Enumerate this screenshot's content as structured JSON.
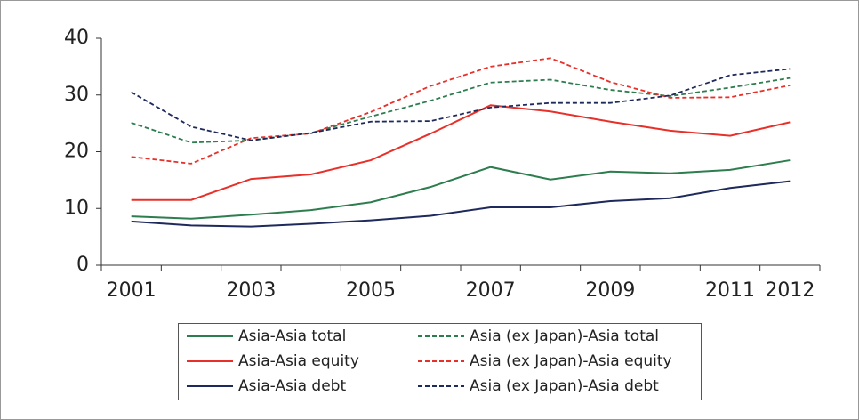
{
  "chart_data": {
    "type": "line",
    "categories": [
      2001,
      null,
      2003,
      null,
      2005,
      null,
      2007,
      null,
      2009,
      null,
      2011,
      2012
    ],
    "series": [
      {
        "name": "Asia-Asia total",
        "color": "#2e7d4f",
        "dashed": false,
        "values": [
          8.6,
          8.2,
          8.9,
          9.7,
          11.1,
          13.8,
          17.3,
          15.1,
          16.5,
          16.2,
          16.8,
          18.5
        ]
      },
      {
        "name": "Asia (ex Japan)-Asia total",
        "color": "#2e7d4f",
        "dashed": true,
        "values": [
          25.1,
          21.6,
          22.0,
          23.3,
          26.2,
          29.0,
          32.2,
          32.7,
          30.9,
          29.8,
          31.3,
          33.0
        ]
      },
      {
        "name": "Asia-Asia equity",
        "color": "#e8302a",
        "dashed": false,
        "values": [
          11.5,
          11.5,
          15.2,
          16.0,
          18.5,
          23.2,
          28.2,
          27.1,
          25.3,
          23.7,
          22.8,
          25.2
        ]
      },
      {
        "name": "Asia (ex Japan)-Asia equity",
        "color": "#e8302a",
        "dashed": true,
        "values": [
          19.1,
          17.9,
          22.4,
          23.2,
          27.0,
          31.6,
          35.0,
          36.5,
          32.3,
          29.5,
          29.6,
          31.7
        ]
      },
      {
        "name": "Asia-Asia debt",
        "color": "#1f2a5c",
        "dashed": false,
        "values": [
          7.7,
          7.0,
          6.8,
          7.3,
          7.9,
          8.7,
          10.2,
          10.2,
          11.3,
          11.8,
          13.6,
          14.8
        ]
      },
      {
        "name": "Asia (ex Japan)-Asia debt",
        "color": "#1f2a5c",
        "dashed": true,
        "values": [
          30.5,
          24.4,
          22.0,
          23.3,
          25.3,
          25.4,
          27.8,
          28.6,
          28.6,
          29.9,
          33.5,
          34.6
        ]
      }
    ],
    "ylim": [
      0,
      40
    ],
    "yticks": [
      0,
      10,
      20,
      30,
      40
    ],
    "grid": false,
    "legend": "bottom"
  }
}
